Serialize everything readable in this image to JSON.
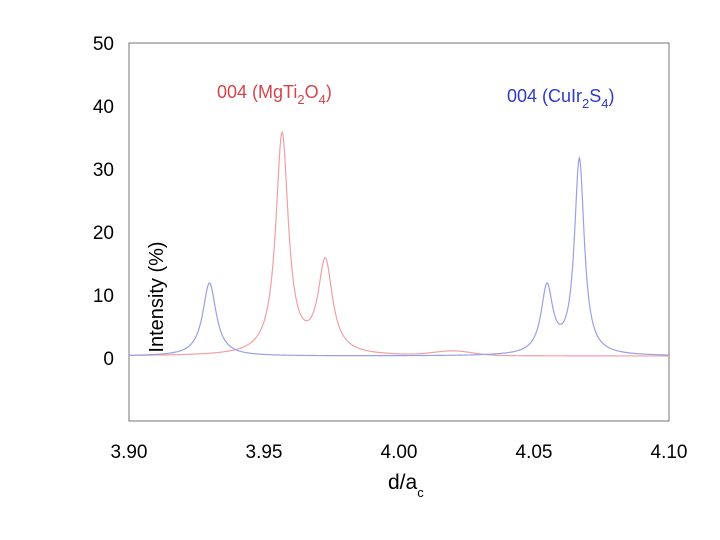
{
  "chart_data": {
    "type": "line",
    "xlabel": "d/a",
    "xlabel_sub": "c",
    "ylabel": "Intensity (%)",
    "xlim": [
      3.9,
      4.1
    ],
    "ylim": [
      -10,
      50
    ],
    "x_ticks": [
      "3.90",
      "3.95",
      "4.00",
      "4.05",
      "4.10"
    ],
    "y_ticks": [
      "50",
      "40",
      "30",
      "20",
      "10",
      "0"
    ],
    "colors": {
      "red": "#d6454a",
      "red_line": "#f0a0a4",
      "blue": "#2e39c4",
      "blue_line": "#9aa0e6"
    },
    "annotations": [
      {
        "id": "red",
        "parts": [
          {
            "t": "004 (MgTi"
          },
          {
            "t": "2",
            "sub": true
          },
          {
            "t": "O"
          },
          {
            "t": "4",
            "sub": true
          },
          {
            "t": ")"
          }
        ]
      },
      {
        "id": "blue",
        "parts": [
          {
            "t": "004 (CuIr"
          },
          {
            "t": "2",
            "sub": true
          },
          {
            "t": "S"
          },
          {
            "t": "4",
            "sub": true
          },
          {
            "t": ")"
          }
        ]
      }
    ],
    "series": [
      {
        "name": "004 (MgTi2O4)",
        "color": "red",
        "baseline": 0.3,
        "peaks": [
          {
            "x0": 3.9567,
            "amp": 35.0,
            "w": 0.0028
          },
          {
            "x0": 3.9727,
            "amp": 14.6,
            "w": 0.0032
          }
        ],
        "bumps": [
          {
            "x0": 4.02,
            "amp": 0.7,
            "w": 0.01
          }
        ]
      },
      {
        "name": "004 (CuIr2S4)",
        "color": "blue",
        "baseline": 0.3,
        "peaks": [
          {
            "x0": 3.9298,
            "amp": 11.6,
            "w": 0.003
          },
          {
            "x0": 4.0548,
            "amp": 10.6,
            "w": 0.0026
          },
          {
            "x0": 4.0668,
            "amp": 31.0,
            "w": 0.0022
          }
        ],
        "bumps": []
      }
    ]
  }
}
